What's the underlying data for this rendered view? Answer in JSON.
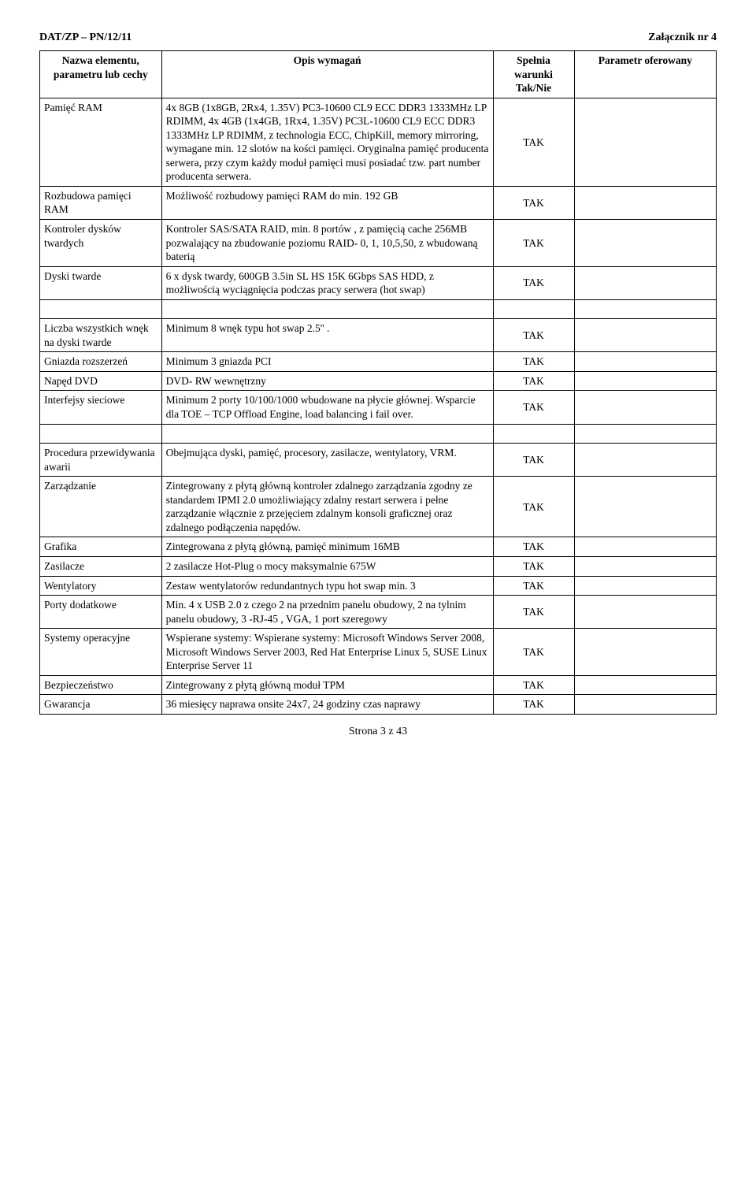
{
  "doc_header_left": "DAT/ZP – PN/12/11",
  "doc_header_right": "Załącznik nr 4",
  "table": {
    "headers": {
      "name": "Nazwa elementu, parametru lub cechy",
      "desc": "Opis wymagań",
      "cond": "Spełnia warunki Tak/Nie",
      "param": "Parametr oferowany"
    },
    "rows": [
      {
        "name": "Pamięć RAM",
        "desc": "4x  8GB (1x8GB, 2Rx4, 1.35V) PC3-10600 CL9 ECC DDR3 1333MHz LP RDIMM, 4x 4GB (1x4GB, 1Rx4, 1.35V) PC3L-10600 CL9 ECC DDR3 1333MHz LP RDIMM, z technologia ECC, ChipKill, memory mirroring, wymagane min. 12 slotów na kości pamięci. Oryginalna pamięć producenta serwera, przy czym każdy moduł pamięci musi posiadać tzw. part number producenta serwera.",
        "cond": "TAK",
        "param": ""
      },
      {
        "name": "Rozbudowa pamięci RAM",
        "desc": "Możliwość rozbudowy pamięci RAM do min. 192 GB",
        "cond": "TAK",
        "param": ""
      },
      {
        "name": "Kontroler dysków twardych",
        "desc": "Kontroler SAS/SATA RAID, min. 8 portów , z pamięcią cache 256MB pozwalający na zbudowanie poziomu RAID- 0, 1, 10,5,50, z wbudowaną baterią",
        "cond": "TAK",
        "param": ""
      },
      {
        "name": "Dyski twarde",
        "desc": "6 x dysk twardy, 600GB 3.5in SL HS 15K 6Gbps SAS HDD, z możliwością wyciągnięcia podczas pracy serwera (hot swap)",
        "cond": "TAK",
        "param": ""
      },
      {
        "name": "Liczba wszystkich wnęk na dyski twarde",
        "desc": "Minimum 8 wnęk typu hot swap 2.5'' .",
        "cond": "TAK",
        "param": "",
        "gap_before": true
      },
      {
        "name": "Gniazda rozszerzeń",
        "desc": "Minimum 3 gniazda PCI",
        "cond": "TAK",
        "param": ""
      },
      {
        "name": "Napęd DVD",
        "desc": "DVD- RW wewnętrzny",
        "cond": "TAK",
        "param": ""
      },
      {
        "name": "Interfejsy sieciowe",
        "desc": "Minimum 2 porty 10/100/1000 wbudowane na płycie głównej. Wsparcie dla TOE – TCP Offload Engine, load balancing i fail over.",
        "cond": "TAK",
        "param": ""
      },
      {
        "name": "Procedura przewidywania awarii",
        "desc": "Obejmująca dyski, pamięć, procesory, zasilacze, wentylatory, VRM.",
        "cond": "TAK",
        "param": "",
        "gap_before": true
      },
      {
        "name": "Zarządzanie",
        "desc": "Zintegrowany z płytą główną kontroler zdalnego zarządzania zgodny ze standardem IPMI 2.0 umożliwiający zdalny restart serwera i pełne zarządzanie włącznie z przejęciem zdalnym konsoli graficznej oraz zdalnego podłączenia napędów.",
        "cond": "TAK",
        "param": ""
      },
      {
        "name": "Grafika",
        "desc": "Zintegrowana z płytą główną, pamięć minimum 16MB",
        "cond": "TAK",
        "param": ""
      },
      {
        "name": "Zasilacze",
        "desc": "2 zasilacze Hot-Plug o mocy maksymalnie 675W",
        "cond": "TAK",
        "param": ""
      },
      {
        "name": "Wentylatory",
        "desc": "Zestaw wentylatorów redundantnych typu hot swap min. 3",
        "cond": "TAK",
        "param": ""
      },
      {
        "name": "Porty dodatkowe",
        "desc": "Min. 4 x USB 2.0 z czego 2 na przednim panelu obudowy, 2 na tylnim panelu obudowy, 3 -RJ-45 ,  VGA, 1 port szeregowy",
        "cond": "TAK",
        "param": ""
      },
      {
        "name": "Systemy operacyjne",
        "desc": "Wspierane systemy: Wspierane systemy: Microsoft Windows Server 2008, Microsoft Windows Server 2003, Red Hat Enterprise Linux 5, SUSE Linux Enterprise Server 11",
        "cond": "TAK",
        "param": ""
      },
      {
        "name": "Bezpieczeństwo",
        "desc": "Zintegrowany z płytą główną moduł TPM",
        "cond": "TAK",
        "param": ""
      },
      {
        "name": "Gwarancja",
        "desc": "36 miesięcy  naprawa onsite 24x7,  24 godziny czas naprawy",
        "cond": "TAK",
        "param": ""
      }
    ]
  },
  "footer": "Strona 3 z 43"
}
